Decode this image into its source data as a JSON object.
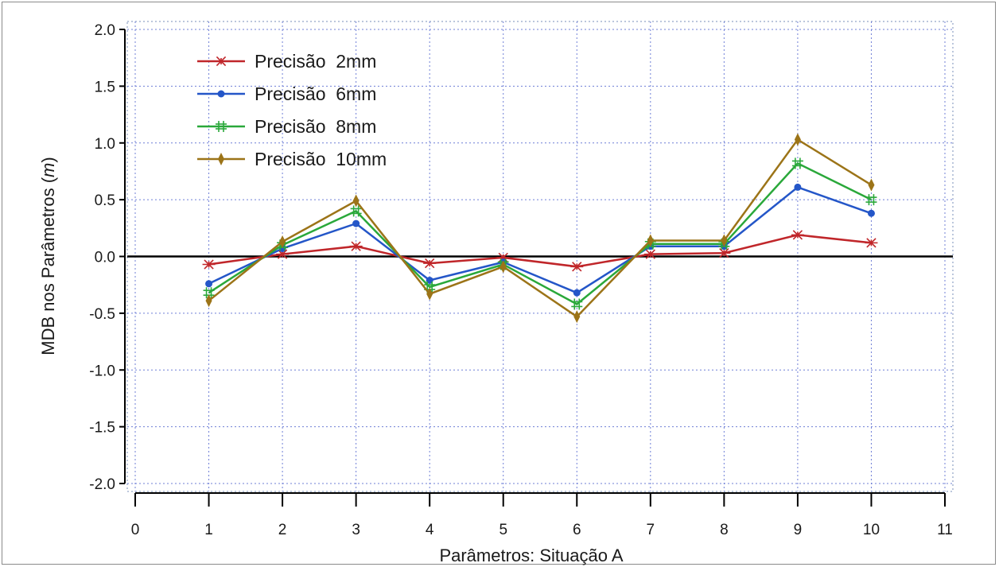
{
  "chart_data": {
    "type": "line",
    "xlabel": "Parâmetros: Situação A",
    "ylabel_main": "MDB nos Parâmetros ",
    "ylabel_unit": "m",
    "xlim": [
      0,
      11
    ],
    "ylim": [
      -2.0,
      2.0
    ],
    "x_ticks": [
      0,
      1,
      2,
      3,
      4,
      5,
      6,
      7,
      8,
      9,
      10,
      11
    ],
    "x_tick_labels": [
      "0",
      "1",
      "2",
      "3",
      "4",
      "5",
      "6",
      "7",
      "8",
      "9",
      "10",
      "11"
    ],
    "y_ticks": [
      -2.0,
      -1.5,
      -1.0,
      -0.5,
      0.0,
      0.5,
      1.0,
      1.5,
      2.0
    ],
    "y_tick_labels": [
      "-2.0",
      "-1.5",
      "-1.0",
      "-0.5",
      "0.0",
      "0.5",
      "1.0",
      "1.5",
      "2.0"
    ],
    "grid": true,
    "zero_line": true,
    "legend_position": "top-left",
    "x": [
      1,
      2,
      3,
      4,
      5,
      6,
      7,
      8,
      9,
      10
    ],
    "series": [
      {
        "name": "Precisão  2mm",
        "color": "#c0262a",
        "marker": "asterisk",
        "values": [
          -0.07,
          0.02,
          0.09,
          -0.06,
          -0.01,
          -0.09,
          0.02,
          0.03,
          0.19,
          0.12
        ]
      },
      {
        "name": "Precisão  6mm",
        "color": "#2456c8",
        "marker": "dot",
        "values": [
          -0.24,
          0.07,
          0.29,
          -0.21,
          -0.05,
          -0.32,
          0.09,
          0.09,
          0.61,
          0.38
        ]
      },
      {
        "name": "Precisão  8mm",
        "color": "#2aa83a",
        "marker": "hash",
        "values": [
          -0.32,
          0.1,
          0.4,
          -0.27,
          -0.07,
          -0.42,
          0.11,
          0.11,
          0.82,
          0.5
        ]
      },
      {
        "name": "Precisão  10mm",
        "color": "#9c7418",
        "marker": "diamond",
        "values": [
          -0.39,
          0.13,
          0.49,
          -0.33,
          -0.09,
          -0.53,
          0.14,
          0.14,
          1.03,
          0.63
        ]
      }
    ]
  }
}
